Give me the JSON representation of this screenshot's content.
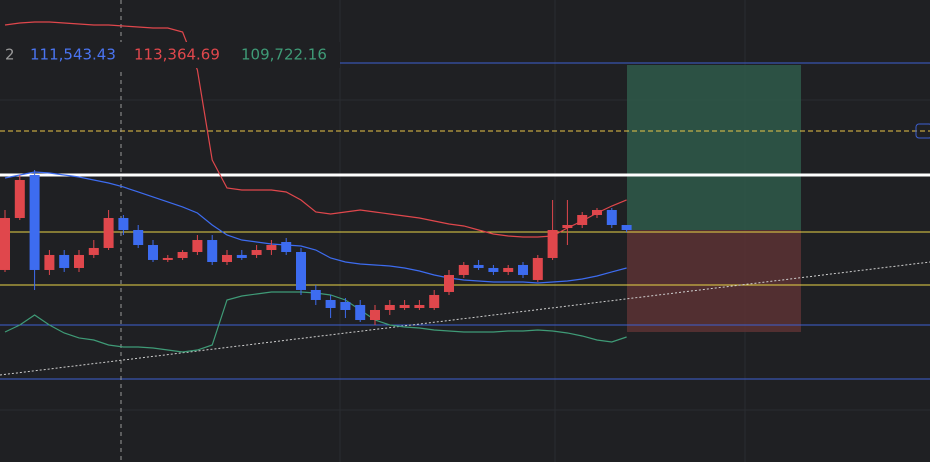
{
  "chart_data": {
    "type": "candlestick",
    "indicator_label": "2",
    "indicator_values": [
      {
        "label": "111,543.43",
        "color": "#4a74f0"
      },
      {
        "label": "113,364.69",
        "color": "#e0474c"
      },
      {
        "label": "109,722.16",
        "color": "#3f9b77"
      }
    ],
    "up_color": "#e0474c",
    "down_color": "#3d6cf0",
    "open": [
      111504,
      112886,
      114030,
      111504,
      111903,
      111557,
      111903,
      112089,
      112886,
      112567,
      112168,
      111770,
      111823,
      111982,
      112301,
      111716,
      111903,
      111903,
      112035,
      112248,
      111982,
      110972,
      110706,
      110653,
      110573,
      110174,
      110440,
      110493,
      110493,
      110493,
      110919,
      111371,
      111637,
      111557,
      111451,
      111637,
      111238,
      111823,
      112620,
      112700,
      112966,
      113099,
      112700
    ],
    "high": [
      113099,
      114030,
      114163,
      112035,
      112035,
      112035,
      112301,
      113099,
      112966,
      112700,
      112301,
      111903,
      112035,
      112434,
      112434,
      112035,
      112035,
      112168,
      112301,
      112355,
      112089,
      111105,
      110839,
      110759,
      110706,
      110573,
      110706,
      110706,
      110706,
      110972,
      111504,
      111716,
      111770,
      111637,
      111637,
      111716,
      111903,
      113365,
      113365,
      113046,
      113152,
      113152,
      112700
    ],
    "low": [
      111451,
      112833,
      110972,
      111371,
      111451,
      111451,
      111823,
      112035,
      112434,
      112089,
      111716,
      111716,
      111770,
      111903,
      111637,
      111637,
      111770,
      111823,
      111903,
      111903,
      110839,
      110573,
      110227,
      110227,
      110121,
      110041,
      110307,
      110440,
      110440,
      110440,
      110839,
      111291,
      111504,
      111371,
      111371,
      111291,
      111185,
      111770,
      112168,
      112620,
      112886,
      112620,
      112514
    ],
    "close": [
      112886,
      113897,
      111504,
      111903,
      111557,
      111903,
      112089,
      112886,
      112567,
      112168,
      111770,
      111823,
      111982,
      112301,
      111716,
      111903,
      111823,
      112035,
      112168,
      111982,
      110972,
      110706,
      110493,
      110440,
      110174,
      110440,
      110573,
      110573,
      110573,
      110839,
      111371,
      111637,
      111557,
      111451,
      111557,
      111371,
      111823,
      112567,
      112700,
      112966,
      113099,
      112700,
      112567
    ],
    "bands": [
      {
        "color": "#e0474c",
        "values": [
          118018,
          118071,
          118098,
          118098,
          118071,
          118045,
          118018,
          118018,
          117992,
          117965,
          117938,
          117938,
          117832,
          116822,
          114429,
          113684,
          113631,
          113631,
          113631,
          113578,
          113365,
          113046,
          112993,
          113046,
          113099,
          113046,
          112993,
          112940,
          112886,
          112807,
          112727,
          112674,
          112567,
          112461,
          112408,
          112381,
          112381,
          112408,
          112620,
          112807,
          113019,
          113205,
          113365
        ]
      },
      {
        "color": "#3d6cf0",
        "values": [
          113950,
          114030,
          114110,
          114083,
          114030,
          113977,
          113897,
          113817,
          113711,
          113578,
          113445,
          113312,
          113179,
          113019,
          112700,
          112434,
          112301,
          112248,
          112195,
          112168,
          112142,
          112035,
          111823,
          111716,
          111663,
          111637,
          111610,
          111557,
          111477,
          111371,
          111291,
          111238,
          111211,
          111185,
          111185,
          111185,
          111158,
          111185,
          111211,
          111264,
          111344,
          111451,
          111557
        ]
      },
      {
        "color": "#3f9b77",
        "values": [
          109855,
          110041,
          110307,
          110041,
          109829,
          109696,
          109642,
          109509,
          109456,
          109456,
          109430,
          109376,
          109323,
          109376,
          109509,
          110706,
          110812,
          110866,
          110919,
          110919,
          110919,
          110892,
          110839,
          110706,
          110440,
          110174,
          110041,
          109988,
          109961,
          109908,
          109882,
          109855,
          109855,
          109855,
          109882,
          109882,
          109908,
          109882,
          109829,
          109749,
          109642,
          109589,
          109722
        ]
      }
    ],
    "levels": [
      {
        "value": 117008,
        "color": "#3d5fd0",
        "dashed": false,
        "width": 1
      },
      {
        "value": 115200,
        "color": "#e8c547",
        "dashed": true,
        "width": 1
      },
      {
        "value": 114030,
        "color": "#ffffff",
        "dashed": false,
        "width": 3
      },
      {
        "value": 112514,
        "color": "#e8d547",
        "dashed": false,
        "width": 1
      },
      {
        "value": 111105,
        "color": "#e8d547",
        "dashed": false,
        "width": 1
      },
      {
        "value": 110041,
        "color": "#3d5fd0",
        "dashed": false,
        "width": 1
      },
      {
        "value": 108605,
        "color": "#3d5fd0",
        "dashed": false,
        "width": 1
      }
    ],
    "position": {
      "target": 116955,
      "entry": 112567,
      "stop": 109855,
      "profit_color": "#2f5a4a",
      "loss_color": "#5c3234"
    },
    "ylim": [
      106398,
      118683
    ]
  }
}
